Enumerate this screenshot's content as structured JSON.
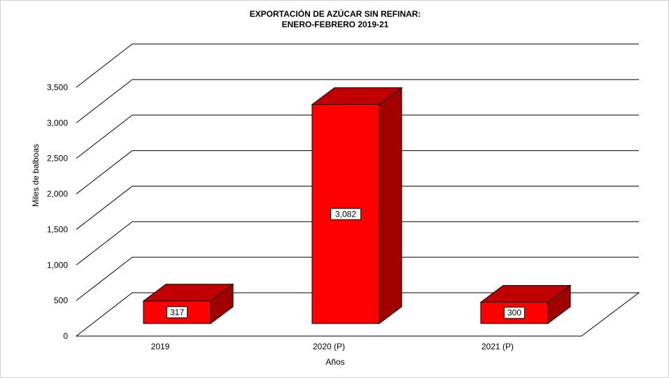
{
  "chart_data": {
    "type": "bar",
    "title": "EXPORTACIÓN  DE  AZÚCAR  SIN REFINAR:",
    "subtitle": "ENERO-FEBRERO  2019-21",
    "xlabel": "Años",
    "ylabel": "Miles de balboas",
    "ylim": [
      0,
      3500
    ],
    "yticks": [
      "0",
      "500",
      "1,000",
      "1,500",
      "2,000",
      "2,500",
      "3,000",
      "3,500"
    ],
    "ytick_values": [
      0,
      500,
      1000,
      1500,
      2000,
      2500,
      3000,
      3500
    ],
    "categories": [
      "2019",
      "2020 (P)",
      "2021 (P)"
    ],
    "values": [
      317,
      3082,
      300
    ],
    "data_labels": [
      "317",
      "3,082",
      "300"
    ],
    "grid": true,
    "legend": "none",
    "colors": {
      "front": "#ff0000",
      "top": "#c00000",
      "side": "#a00000"
    }
  }
}
